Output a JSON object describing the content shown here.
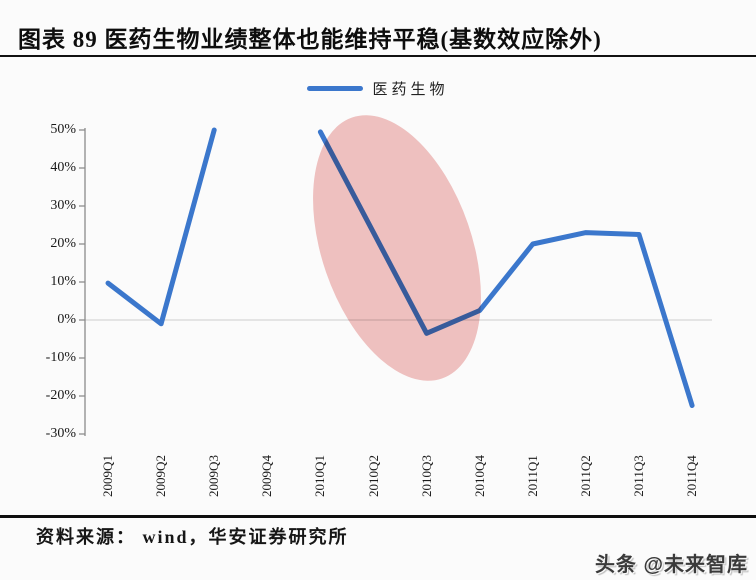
{
  "header": {
    "title": "图表 89 医药生物业绩整体也能维持平稳(基数效应除外)"
  },
  "legend": {
    "label": "医药生物"
  },
  "chart_data": {
    "type": "line",
    "title": "图表 89 医药生物业绩整体也能维持平稳(基数效应除外)",
    "categories": [
      "2009Q1",
      "2009Q2",
      "2009Q3",
      "2009Q4",
      "2010Q1",
      "2010Q2",
      "2010Q3",
      "2010Q4",
      "2011Q1",
      "2011Q2",
      "2011Q3",
      "2011Q4"
    ],
    "series": [
      {
        "name": "医药生物",
        "values": [
          9.7,
          -1,
          50,
          null,
          49.5,
          23,
          -3.5,
          2.5,
          20,
          23,
          22.5,
          -22.5
        ]
      }
    ],
    "series_color": "#3b77cc",
    "ytick_labels": [
      "50%",
      "40%",
      "30%",
      "20%",
      "10%",
      "0%",
      "-10%",
      "-20%",
      "-30%"
    ],
    "yticks": [
      50,
      40,
      30,
      20,
      10,
      0,
      -10,
      -20,
      -30
    ],
    "ylim": [
      -30,
      50
    ],
    "xlabel": "",
    "ylabel": "",
    "grid": "horizontal zero-line only",
    "legend_position": "top-center",
    "note": "no data plotted for 2009Q4 (gap in line)",
    "highlight": {
      "shape": "ellipse",
      "color": "#f2c3c2",
      "covers": [
        "2010Q1",
        "2010Q2",
        "2010Q3",
        "2010Q4"
      ],
      "meaning": "circles the steep decline from 2010Q1 to 2010Q4"
    }
  },
  "footer": {
    "source": "资料来源： wind，华安证券研究所",
    "watermark": "头条 @未来智库"
  }
}
